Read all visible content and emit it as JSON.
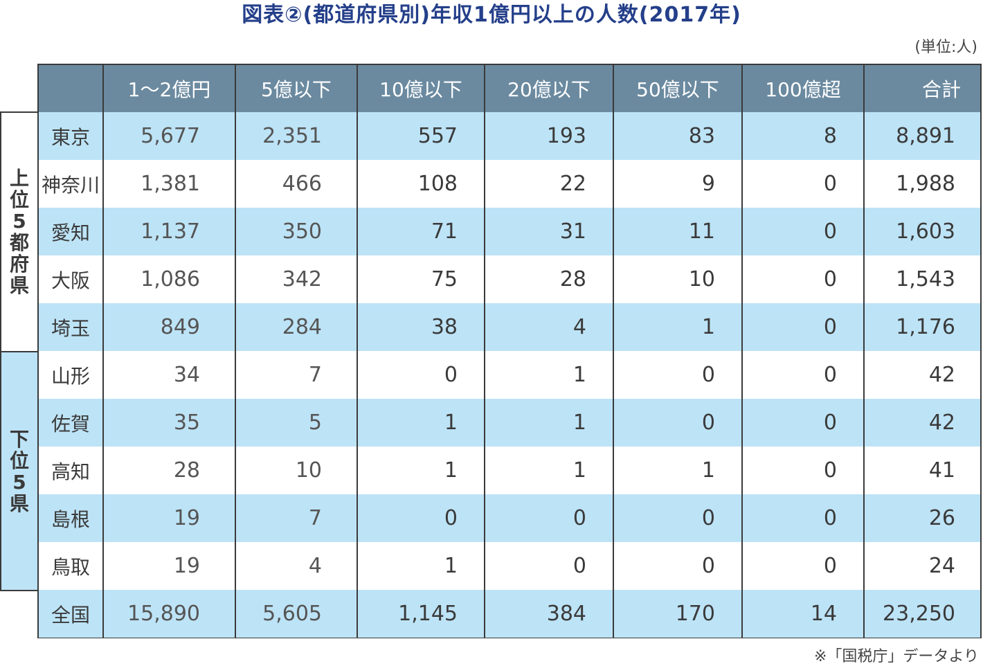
{
  "title": "図表②(都道府県別)年収1億円以上の人数(2017年)",
  "unit": "(単位:人)",
  "source": "※「国税庁」データより",
  "groups": {
    "top": [
      "上",
      "位",
      "5",
      "都",
      "府",
      "県"
    ],
    "bottom": [
      "下",
      "位",
      "5",
      "県"
    ]
  },
  "columns": [
    "1〜2億円",
    "5億以下",
    "10億以下",
    "20億以下",
    "50億以下",
    "100億超",
    "合計"
  ],
  "rows": [
    {
      "name": "東京",
      "values": [
        "5,677",
        "2,351",
        "557",
        "193",
        "83",
        "8",
        "8,891"
      ]
    },
    {
      "name": "神奈川",
      "values": [
        "1,381",
        "466",
        "108",
        "22",
        "9",
        "0",
        "1,988"
      ]
    },
    {
      "name": "愛知",
      "values": [
        "1,137",
        "350",
        "71",
        "31",
        "11",
        "0",
        "1,603"
      ]
    },
    {
      "name": "大阪",
      "values": [
        "1,086",
        "342",
        "75",
        "28",
        "10",
        "0",
        "1,543"
      ]
    },
    {
      "name": "埼玉",
      "values": [
        "849",
        "284",
        "38",
        "4",
        "1",
        "0",
        "1,176"
      ]
    },
    {
      "name": "山形",
      "values": [
        "34",
        "7",
        "0",
        "1",
        "0",
        "0",
        "42"
      ]
    },
    {
      "name": "佐賀",
      "values": [
        "35",
        "5",
        "1",
        "1",
        "0",
        "0",
        "42"
      ]
    },
    {
      "name": "高知",
      "values": [
        "28",
        "10",
        "1",
        "1",
        "1",
        "0",
        "41"
      ]
    },
    {
      "name": "島根",
      "values": [
        "19",
        "7",
        "0",
        "0",
        "0",
        "0",
        "26"
      ]
    },
    {
      "name": "鳥取",
      "values": [
        "19",
        "4",
        "1",
        "0",
        "0",
        "0",
        "24"
      ]
    },
    {
      "name": "全国",
      "values": [
        "15,890",
        "5,605",
        "1,145",
        "384",
        "170",
        "14",
        "23,250"
      ]
    }
  ],
  "colors": {
    "header": "#6b8aa0",
    "stripe": "#bde3f6",
    "title": "#243f8a"
  }
}
